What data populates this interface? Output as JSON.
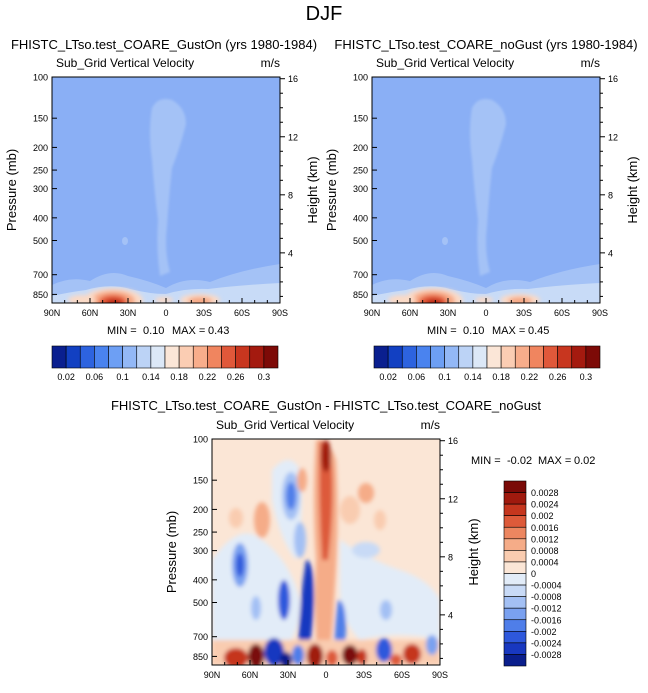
{
  "page_title": "DJF",
  "palette": {
    "mean": [
      "#0a1f8f",
      "#1240c2",
      "#2d63df",
      "#4a83ef",
      "#6d9ff4",
      "#93b8f6",
      "#bcd3f6",
      "#dce8f7",
      "#fbe6d7",
      "#fbcdb3",
      "#f8ad8b",
      "#f0855f",
      "#e0583a",
      "#c8361f",
      "#a41a0f",
      "#7d0a07"
    ],
    "diff": [
      "#0a1e8c",
      "#1838c0",
      "#2e58dc",
      "#4f7ee9",
      "#7aa1f0",
      "#a3c0f4",
      "#c8daf6",
      "#e2ecf8",
      "#fbe6d6",
      "#f9ccb0",
      "#f5ac88",
      "#ec8660",
      "#dd5a3a",
      "#c5361e",
      "#a01a0e",
      "#7a0a07"
    ]
  },
  "chart_data": [
    {
      "type": "heatmap",
      "title": "FHISTC_LTso.test_COARE_GustOn (yrs 1980-1984)",
      "subtitle": "Sub_Grid Vertical Velocity",
      "units": "m/s",
      "ylabel": "Pressure (mb)",
      "y2label": "Height (km)",
      "x_ticks": [
        "90N",
        "60N",
        "30N",
        "0",
        "30S",
        "60S",
        "90S"
      ],
      "y_ticks": [
        "100",
        "150",
        "200",
        "250",
        "300",
        "400",
        "500",
        "700",
        "850"
      ],
      "y2_ticks": [
        "16",
        "12",
        "8",
        "4"
      ],
      "min_label": "MIN =",
      "min_value": "0.10",
      "max_label": "MAX =",
      "max_value": "0.43",
      "min": 0.1,
      "max": 0.43,
      "colorbar_labels": [
        "0.02",
        "0.06",
        "0.1",
        "0.14",
        "0.18",
        "0.22",
        "0.26",
        "0.3"
      ]
    },
    {
      "type": "heatmap",
      "title": "FHISTC_LTso.test_COARE_noGust (yrs 1980-1984)",
      "subtitle": "Sub_Grid Vertical Velocity",
      "units": "m/s",
      "ylabel": "Pressure (mb)",
      "y2label": "Height (km)",
      "x_ticks": [
        "90N",
        "60N",
        "30N",
        "0",
        "30S",
        "60S",
        "90S"
      ],
      "y_ticks": [
        "100",
        "150",
        "200",
        "250",
        "300",
        "400",
        "500",
        "700",
        "850"
      ],
      "y2_ticks": [
        "16",
        "12",
        "8",
        "4"
      ],
      "min_label": "MIN =",
      "min_value": "0.10",
      "max_label": "MAX =",
      "max_value": "0.45",
      "min": 0.1,
      "max": 0.45,
      "colorbar_labels": [
        "0.02",
        "0.06",
        "0.1",
        "0.14",
        "0.18",
        "0.22",
        "0.26",
        "0.3"
      ]
    },
    {
      "type": "heatmap",
      "title": "FHISTC_LTso.test_COARE_GustOn - FHISTC_LTso.test_COARE_noGust",
      "subtitle": "Sub_Grid Vertical Velocity",
      "units": "m/s",
      "ylabel": "Pressure (mb)",
      "y2label": "Height (km)",
      "x_ticks": [
        "90N",
        "60N",
        "30N",
        "0",
        "30S",
        "60S",
        "90S"
      ],
      "y_ticks": [
        "100",
        "150",
        "200",
        "250",
        "300",
        "400",
        "500",
        "700",
        "850"
      ],
      "y2_ticks": [
        "16",
        "12",
        "8",
        "4"
      ],
      "min_label": "MIN =",
      "min_value": "-0.02",
      "max_label": "MAX =",
      "max_value": "0.02",
      "min": -0.02,
      "max": 0.02,
      "colorbar_labels": [
        "0.0028",
        "0.0024",
        "0.002",
        "0.0016",
        "0.0012",
        "0.0008",
        "0.0004",
        "0",
        "-0.0004",
        "-0.0008",
        "-0.0012",
        "-0.0016",
        "-0.002",
        "-0.0024",
        "-0.0028"
      ]
    }
  ]
}
